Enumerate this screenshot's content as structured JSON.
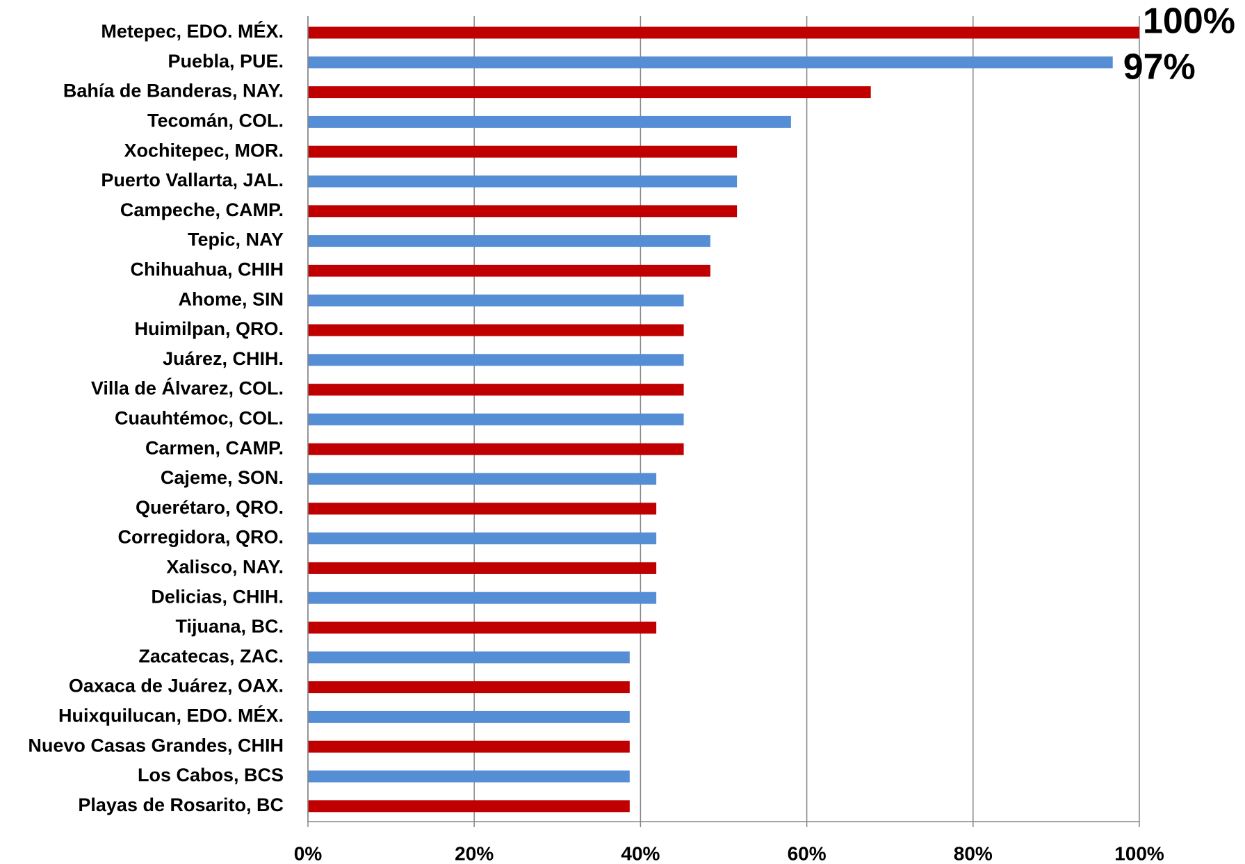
{
  "chart_data": {
    "type": "hbar",
    "categories": [
      "Metepec, EDO. MÉX.",
      "Puebla, PUE.",
      "Bahía de Banderas, NAY.",
      "Tecomán, COL.",
      "Xochitepec, MOR.",
      "Puerto Vallarta, JAL.",
      "Campeche, CAMP.",
      "Tepic, NAY",
      "Chihuahua, CHIH",
      "Ahome, SIN",
      "Huimilpan, QRO.",
      "Juárez, CHIH.",
      "Villa de Álvarez, COL.",
      "Cuauhtémoc, COL.",
      "Carmen, CAMP.",
      "Cajeme, SON.",
      "Querétaro, QRO.",
      "Corregidora, QRO.",
      "Xalisco, NAY.",
      "Delicias, CHIH.",
      "Tijuana, BC.",
      "Zacatecas, ZAC.",
      "Oaxaca de Juárez, OAX.",
      "Huixquilucan, EDO. MÉX.",
      "Nuevo Casas Grandes, CHIH",
      "Los Cabos, BCS",
      "Playas de Rosarito, BC"
    ],
    "values": [
      100,
      96.8,
      67.7,
      58.1,
      51.6,
      51.6,
      51.6,
      48.4,
      48.4,
      45.2,
      45.2,
      45.2,
      45.2,
      45.2,
      45.2,
      41.9,
      41.9,
      41.9,
      41.9,
      41.9,
      41.9,
      38.7,
      38.7,
      38.7,
      38.7,
      38.7,
      38.7
    ],
    "value_labels": [
      "100%",
      "97%",
      null,
      null,
      null,
      null,
      null,
      null,
      null,
      null,
      null,
      null,
      null,
      null,
      null,
      null,
      null,
      null,
      null,
      null,
      null,
      null,
      null,
      null,
      null,
      null,
      null
    ],
    "colors": [
      "#c00000",
      "#558ed5",
      "#c00000",
      "#558ed5",
      "#c00000",
      "#558ed5",
      "#c00000",
      "#558ed5",
      "#c00000",
      "#558ed5",
      "#c00000",
      "#558ed5",
      "#c00000",
      "#558ed5",
      "#c00000",
      "#558ed5",
      "#c00000",
      "#558ed5",
      "#c00000",
      "#558ed5",
      "#c00000",
      "#558ed5",
      "#c00000",
      "#558ed5",
      "#c00000",
      "#558ed5",
      "#c00000"
    ],
    "xlim": [
      0,
      100
    ],
    "xticks": [
      {
        "value": 0,
        "label": "0%"
      },
      {
        "value": 20,
        "label": "20%"
      },
      {
        "value": 40,
        "label": "40%"
      },
      {
        "value": 60,
        "label": "60%"
      },
      {
        "value": 80,
        "label": "80%"
      },
      {
        "value": 100,
        "label": "100%"
      }
    ],
    "grid": true
  }
}
